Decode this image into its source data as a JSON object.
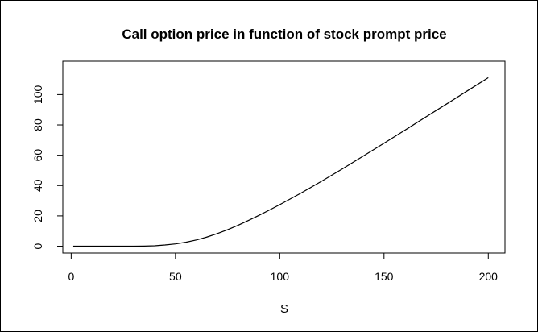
{
  "chart_data": {
    "type": "line",
    "title": "Call option price in function of stock prompt price",
    "xlabel": "S",
    "ylabel": "",
    "xlim": [
      -4,
      208
    ],
    "ylim": [
      -4.5,
      122
    ],
    "xticks": [
      0,
      50,
      100,
      150,
      200
    ],
    "yticks": [
      0,
      20,
      40,
      60,
      80,
      100
    ],
    "grid": false,
    "legend": "none",
    "line_color": "#000000",
    "series": [
      {
        "x": [
          1,
          10,
          20,
          30,
          35,
          40,
          45,
          50,
          55,
          60,
          65,
          70,
          75,
          80,
          85,
          90,
          95,
          100,
          110,
          120,
          130,
          140,
          150,
          160,
          170,
          180,
          190,
          200
        ],
        "values": [
          0,
          0,
          0,
          0,
          0.1,
          0.3,
          0.8,
          1.5,
          2.6,
          4.1,
          6.0,
          8.3,
          10.9,
          13.8,
          17.0,
          20.3,
          23.8,
          27.4,
          34.9,
          42.8,
          51.0,
          59.4,
          67.9,
          76.5,
          85.2,
          93.8,
          102.5,
          111.2
        ]
      }
    ]
  }
}
